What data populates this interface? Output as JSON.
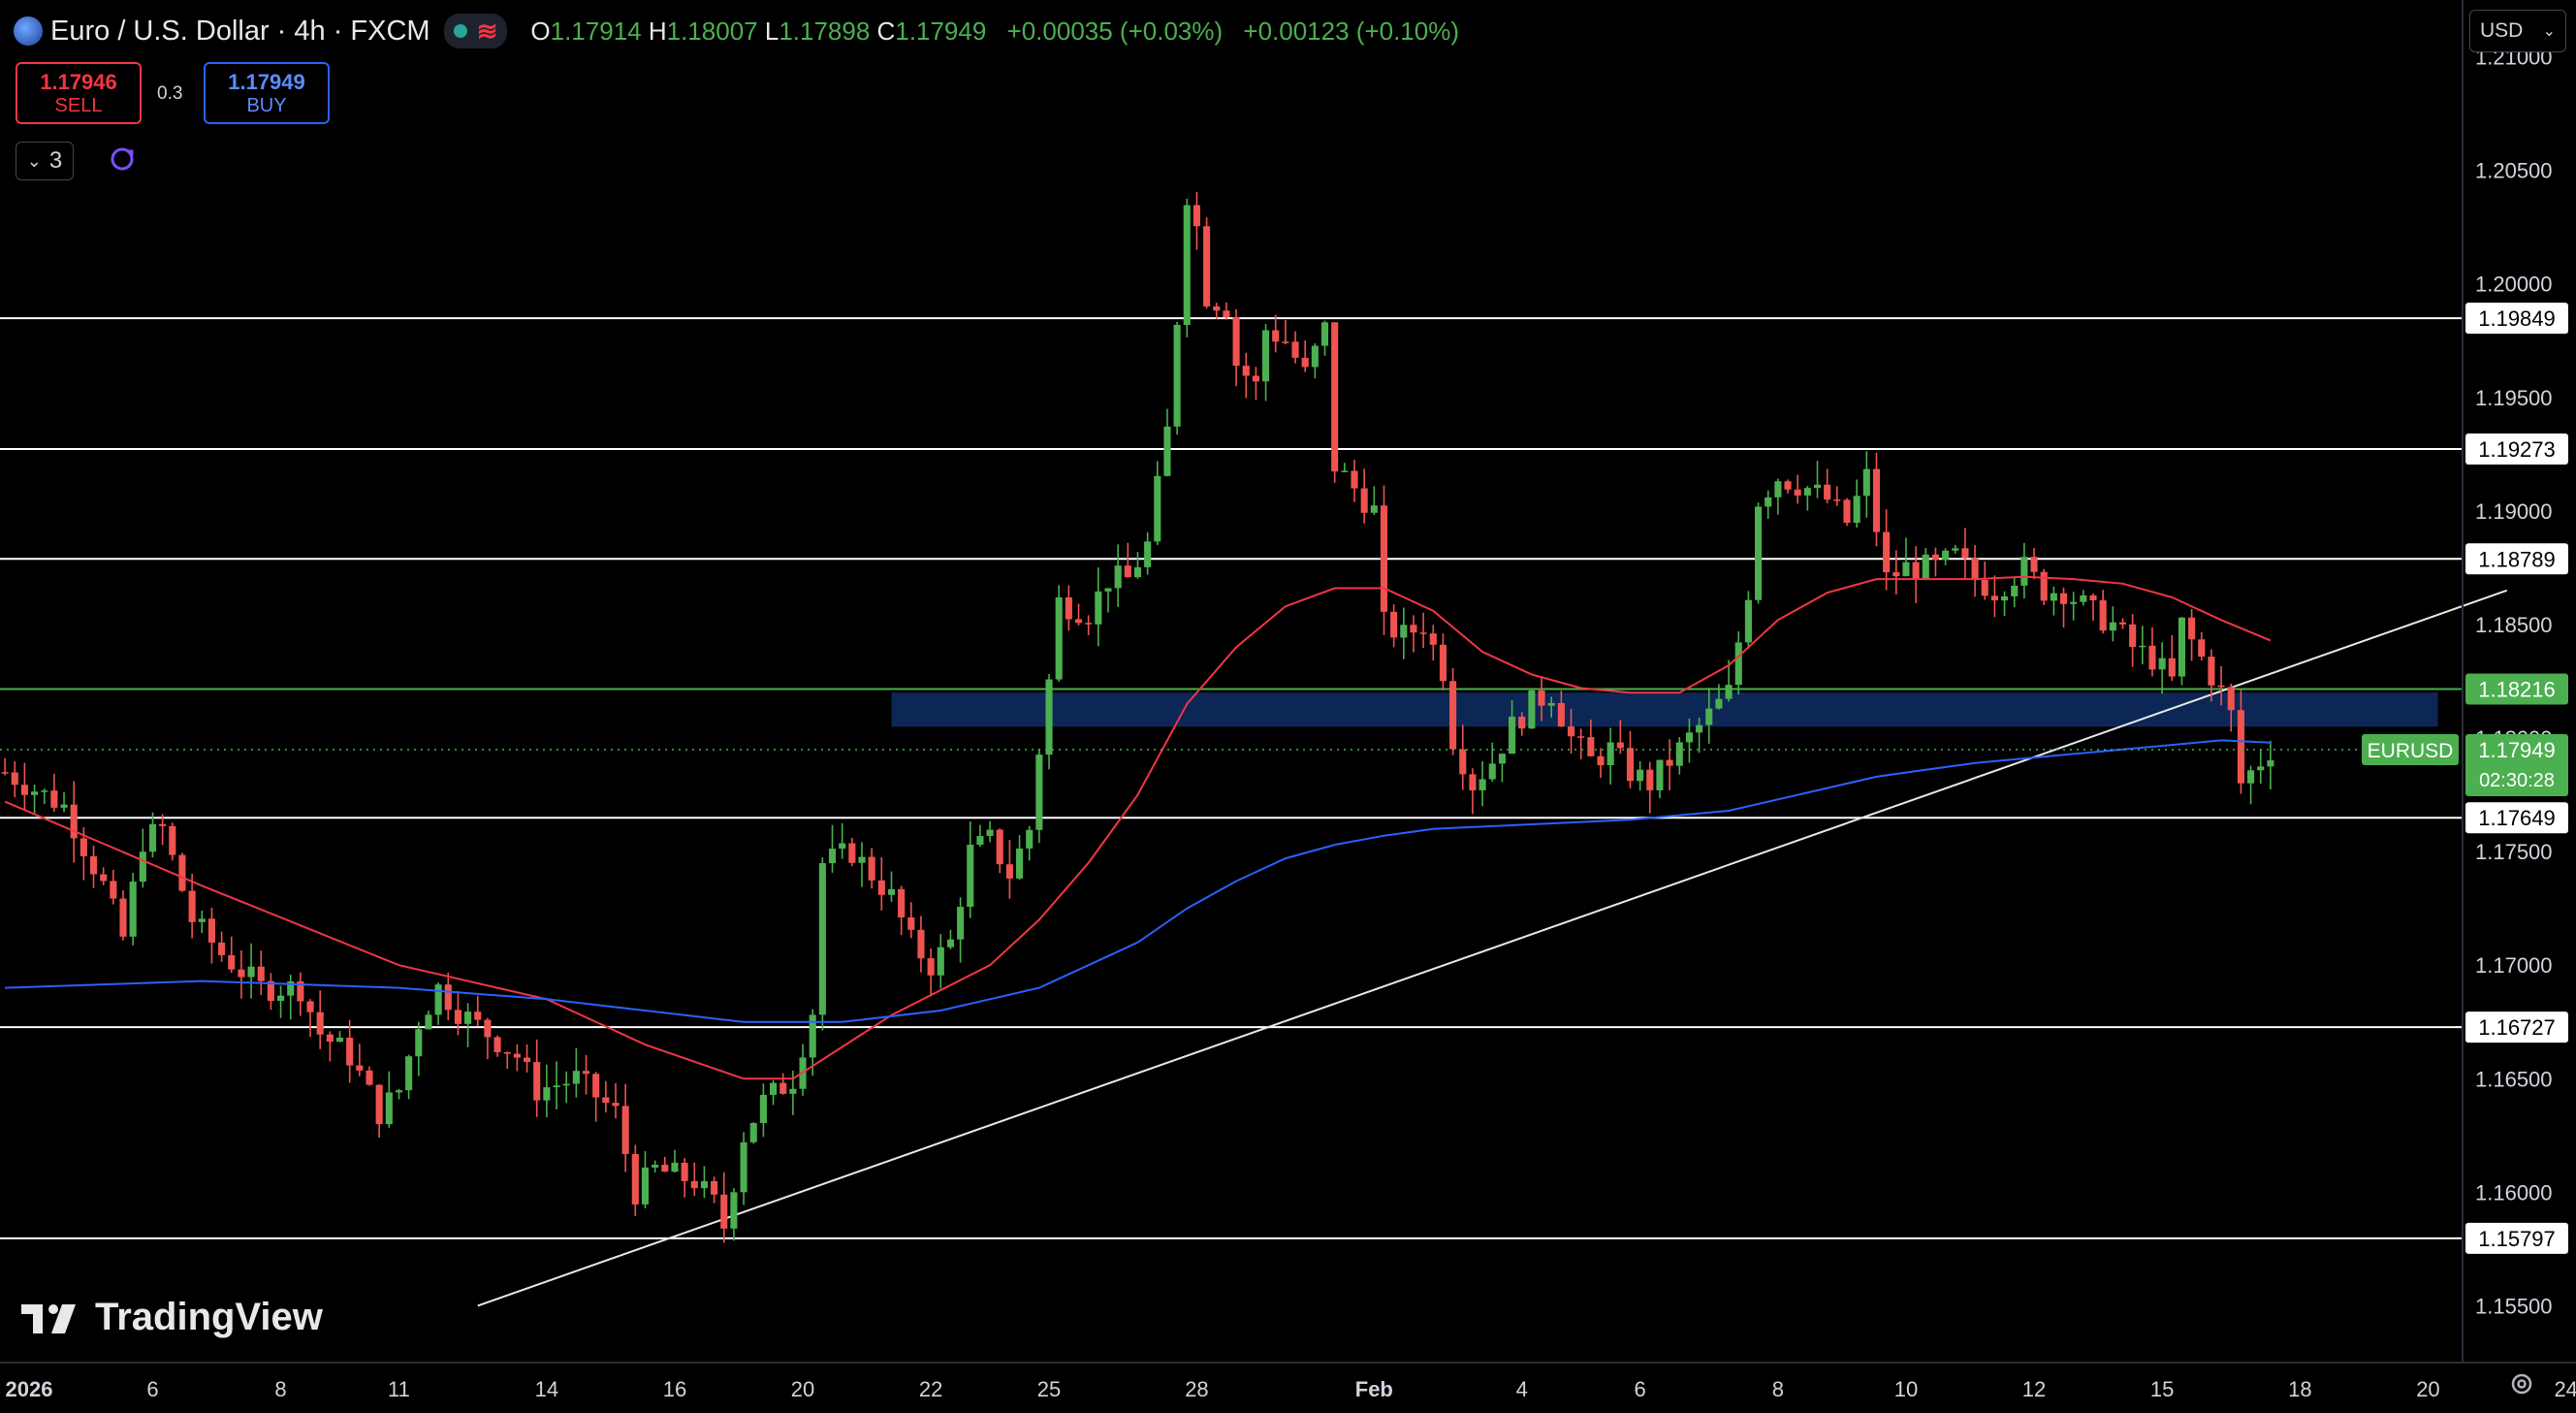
{
  "header": {
    "symbol_title": "Euro / U.S. Dollar · 4h · FXCM",
    "ohlc": [
      {
        "k": "O",
        "v": "1.17914"
      },
      {
        "k": "H",
        "v": "1.18007"
      },
      {
        "k": "L",
        "v": "1.17898"
      },
      {
        "k": "C",
        "v": "1.17949"
      }
    ],
    "change": "+0.00035 (+0.03%)",
    "change2": "+0.00123 (+0.10%)"
  },
  "trade": {
    "sell_price": "1.17946",
    "sell_label": "SELL",
    "buy_price": "1.17949",
    "buy_label": "BUY",
    "spread": "0.3"
  },
  "indicators_count": "3",
  "currency": "USD",
  "watermark": "TradingView",
  "colors": {
    "up": "#4caf50",
    "down": "#ef5350",
    "ma_fast": "#f23645",
    "ma_slow": "#2962ff",
    "level_line": "#ffffff",
    "support_green": "#4caf50",
    "zone": "#0d2a5e"
  },
  "chart_data": {
    "type": "candlestick",
    "symbol": "EURUSD",
    "timeframe": "4h",
    "ylim": [
      1.1525,
      1.2125
    ],
    "y_ticks": [
      1.155,
      1.16,
      1.165,
      1.17,
      1.175,
      1.18,
      1.185,
      1.19,
      1.195,
      1.2,
      1.205,
      1.21
    ],
    "x_ticks": [
      {
        "label": "2026",
        "bar": 0
      },
      {
        "label": "6",
        "bar": 15
      },
      {
        "label": "8",
        "bar": 28
      },
      {
        "label": "11",
        "bar": 40
      },
      {
        "label": "14",
        "bar": 55
      },
      {
        "label": "16",
        "bar": 68
      },
      {
        "label": "20",
        "bar": 81
      },
      {
        "label": "22",
        "bar": 94
      },
      {
        "label": "25",
        "bar": 106
      },
      {
        "label": "28",
        "bar": 121
      },
      {
        "label": "Feb",
        "bar": 139
      },
      {
        "label": "4",
        "bar": 154
      },
      {
        "label": "6",
        "bar": 166
      },
      {
        "label": "8",
        "bar": 180
      },
      {
        "label": "10",
        "bar": 193
      },
      {
        "label": "12",
        "bar": 206
      },
      {
        "label": "15",
        "bar": 219
      },
      {
        "label": "18",
        "bar": 233
      },
      {
        "label": "20",
        "bar": 246
      },
      {
        "label": "24",
        "bar": 260
      }
    ],
    "bars_visible": 250,
    "close_path": [
      [
        0,
        1.1785
      ],
      [
        6,
        1.177
      ],
      [
        10,
        1.1735
      ],
      [
        12,
        1.1712
      ],
      [
        14,
        1.1755
      ],
      [
        16,
        1.176
      ],
      [
        19,
        1.172
      ],
      [
        22,
        1.1705
      ],
      [
        26,
        1.169
      ],
      [
        30,
        1.169
      ],
      [
        32,
        1.167
      ],
      [
        35,
        1.166
      ],
      [
        38,
        1.1635
      ],
      [
        40,
        1.1645
      ],
      [
        42,
        1.1675
      ],
      [
        44,
        1.169
      ],
      [
        46,
        1.168
      ],
      [
        49,
        1.167
      ],
      [
        52,
        1.166
      ],
      [
        54,
        1.1645
      ],
      [
        58,
        1.165
      ],
      [
        62,
        1.1635
      ],
      [
        64,
        1.16
      ],
      [
        66,
        1.161
      ],
      [
        70,
        1.1605
      ],
      [
        72,
        1.1595
      ],
      [
        73,
        1.1585
      ],
      [
        75,
        1.1625
      ],
      [
        77,
        1.164
      ],
      [
        80,
        1.165
      ],
      [
        82,
        1.168
      ],
      [
        83,
        1.1745
      ],
      [
        86,
        1.175
      ],
      [
        88,
        1.174
      ],
      [
        90,
        1.173
      ],
      [
        92,
        1.171
      ],
      [
        94,
        1.17
      ],
      [
        96,
        1.171
      ],
      [
        98,
        1.175
      ],
      [
        100,
        1.1755
      ],
      [
        102,
        1.174
      ],
      [
        104,
        1.176
      ],
      [
        105,
        1.1795
      ],
      [
        106,
        1.1825
      ],
      [
        107,
        1.186
      ],
      [
        110,
        1.1855
      ],
      [
        112,
        1.187
      ],
      [
        114,
        1.187
      ],
      [
        116,
        1.1885
      ],
      [
        118,
        1.1935
      ],
      [
        119,
        1.1985
      ],
      [
        120,
        1.204
      ],
      [
        121,
        1.2025
      ],
      [
        122,
        1.1995
      ],
      [
        124,
        1.199
      ],
      [
        125,
        1.1965
      ],
      [
        127,
        1.1955
      ],
      [
        128,
        1.198
      ],
      [
        130,
        1.1975
      ],
      [
        132,
        1.196
      ],
      [
        134,
        1.198
      ],
      [
        135,
        1.192
      ],
      [
        137,
        1.191
      ],
      [
        139,
        1.19
      ],
      [
        140,
        1.185
      ],
      [
        142,
        1.1845
      ],
      [
        144,
        1.185
      ],
      [
        146,
        1.183
      ],
      [
        147,
        1.18
      ],
      [
        149,
        1.178
      ],
      [
        151,
        1.179
      ],
      [
        153,
        1.1805
      ],
      [
        155,
        1.1815
      ],
      [
        157,
        1.182
      ],
      [
        159,
        1.18
      ],
      [
        161,
        1.179
      ],
      [
        163,
        1.1795
      ],
      [
        165,
        1.1785
      ],
      [
        167,
        1.178
      ],
      [
        169,
        1.179
      ],
      [
        171,
        1.18
      ],
      [
        173,
        1.181
      ],
      [
        175,
        1.182
      ],
      [
        177,
        1.1865
      ],
      [
        178,
        1.1905
      ],
      [
        180,
        1.1915
      ],
      [
        183,
        1.191
      ],
      [
        185,
        1.1905
      ],
      [
        187,
        1.1895
      ],
      [
        189,
        1.1915
      ],
      [
        191,
        1.187
      ],
      [
        193,
        1.1875
      ],
      [
        196,
        1.1875
      ],
      [
        198,
        1.188
      ],
      [
        200,
        1.187
      ],
      [
        202,
        1.1865
      ],
      [
        205,
        1.1875
      ],
      [
        207,
        1.1865
      ],
      [
        209,
        1.1865
      ],
      [
        212,
        1.1855
      ],
      [
        214,
        1.185
      ],
      [
        216,
        1.184
      ],
      [
        218,
        1.1835
      ],
      [
        220,
        1.1825
      ],
      [
        221,
        1.185
      ],
      [
        223,
        1.1835
      ],
      [
        225,
        1.182
      ],
      [
        226,
        1.181
      ],
      [
        227,
        1.178
      ],
      [
        229,
        1.179
      ],
      [
        230,
        1.1795
      ]
    ],
    "ma_fast": [
      [
        0,
        1.1772
      ],
      [
        20,
        1.1735
      ],
      [
        40,
        1.17
      ],
      [
        55,
        1.1685
      ],
      [
        65,
        1.1665
      ],
      [
        75,
        1.165
      ],
      [
        80,
        1.165
      ],
      [
        90,
        1.1678
      ],
      [
        100,
        1.17
      ],
      [
        105,
        1.172
      ],
      [
        110,
        1.1745
      ],
      [
        115,
        1.1775
      ],
      [
        120,
        1.1815
      ],
      [
        125,
        1.184
      ],
      [
        130,
        1.1858
      ],
      [
        135,
        1.1866
      ],
      [
        140,
        1.1866
      ],
      [
        145,
        1.1856
      ],
      [
        150,
        1.1838
      ],
      [
        155,
        1.1828
      ],
      [
        160,
        1.1822
      ],
      [
        165,
        1.182
      ],
      [
        170,
        1.182
      ],
      [
        175,
        1.1832
      ],
      [
        180,
        1.1852
      ],
      [
        185,
        1.1864
      ],
      [
        190,
        1.187
      ],
      [
        195,
        1.187
      ],
      [
        200,
        1.187
      ],
      [
        205,
        1.1871
      ],
      [
        210,
        1.187
      ],
      [
        215,
        1.1868
      ],
      [
        220,
        1.1862
      ],
      [
        225,
        1.1852
      ],
      [
        230,
        1.1843
      ]
    ],
    "ma_slow": [
      [
        0,
        1.169
      ],
      [
        20,
        1.1693
      ],
      [
        40,
        1.169
      ],
      [
        55,
        1.1685
      ],
      [
        65,
        1.168
      ],
      [
        75,
        1.1675
      ],
      [
        85,
        1.1675
      ],
      [
        95,
        1.168
      ],
      [
        105,
        1.169
      ],
      [
        115,
        1.171
      ],
      [
        120,
        1.1725
      ],
      [
        125,
        1.1737
      ],
      [
        130,
        1.1747
      ],
      [
        135,
        1.1753
      ],
      [
        140,
        1.1757
      ],
      [
        145,
        1.176
      ],
      [
        155,
        1.1762
      ],
      [
        165,
        1.1764
      ],
      [
        175,
        1.1768
      ],
      [
        180,
        1.1773
      ],
      [
        185,
        1.1778
      ],
      [
        190,
        1.1783
      ],
      [
        195,
        1.1786
      ],
      [
        200,
        1.1789
      ],
      [
        205,
        1.1791
      ],
      [
        210,
        1.1793
      ],
      [
        215,
        1.1795
      ],
      [
        220,
        1.1797
      ],
      [
        225,
        1.1799
      ],
      [
        230,
        1.1798
      ]
    ],
    "horizontal_levels": [
      "1.19849",
      "1.19273",
      "1.18789",
      "1.18216",
      "1.17649",
      "1.16727",
      "1.15797"
    ],
    "green_level": "1.18216",
    "zone": {
      "from_bar": 90,
      "to_bar": 247,
      "y_low": 1.1805,
      "y_high": 1.182
    },
    "trendline": {
      "from": [
        48,
        1.155
      ],
      "to": [
        254,
        1.1865
      ]
    },
    "current_price_label": "EURUSD",
    "current_price": "1.17949",
    "countdown": "02:30:28"
  }
}
